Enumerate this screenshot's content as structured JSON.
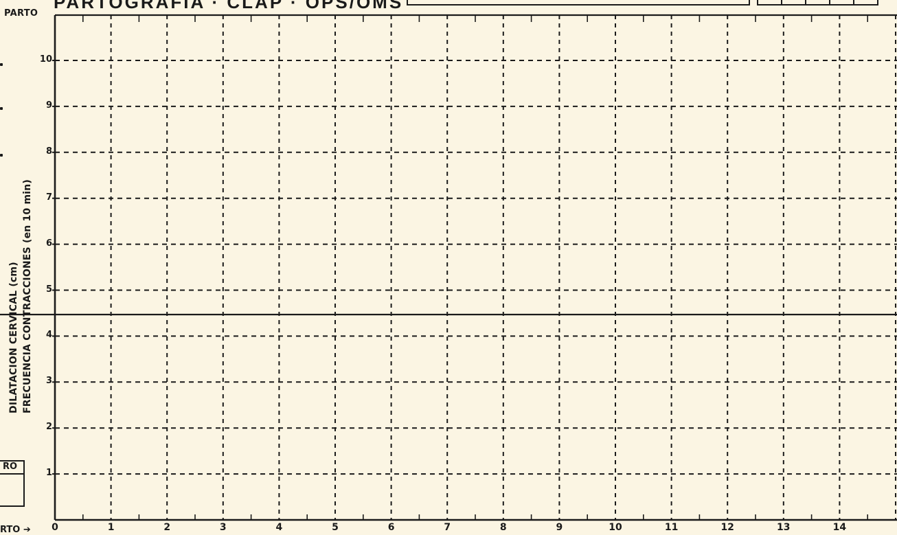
{
  "form": {
    "title": "PARTOGRAFIA · CLAP · OPS/OMS",
    "parto_top_label": "PARTO",
    "parto_bottom_label": "RTO",
    "ro_label": "RO"
  },
  "y_axis": {
    "label_line1": "DILATACION CERVICAL (cm)",
    "label_line2": "FRECUENCIA CONTRACCIONES (en 10 min)",
    "ticks": [
      "1",
      "2",
      "3",
      "4",
      "5",
      "6",
      "7",
      "8",
      "9",
      "10"
    ]
  },
  "x_axis": {
    "ticks": [
      "0",
      "1",
      "2",
      "3",
      "4",
      "5",
      "6",
      "7",
      "8",
      "9",
      "10",
      "11",
      "12",
      "13",
      "14"
    ]
  },
  "colors": {
    "paper": "#fbf5e3",
    "ink": "#1a1a1a"
  }
}
